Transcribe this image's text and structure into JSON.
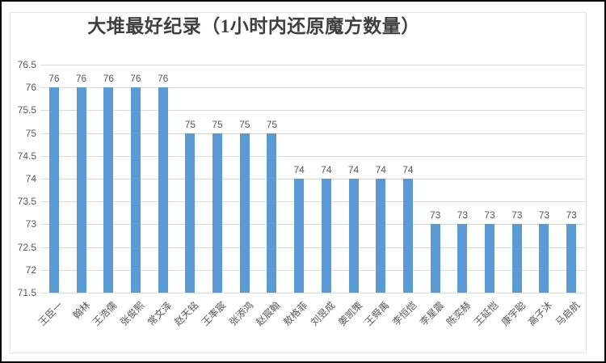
{
  "window": {
    "background": "#ffffff",
    "border_color": "#000000"
  },
  "chart_data": {
    "type": "bar",
    "title": "大堆最好纪录（1小时内还原魔方数量）",
    "categories": [
      "王臣一",
      "翰林",
      "王浩儒",
      "张俊熙",
      "常文泽",
      "赵天铭",
      "王率宸",
      "张添鸿",
      "赵宸翰",
      "敖格菲",
      "刘昱成",
      "姜凯策",
      "王舜禹",
      "李恒恺",
      "李星震",
      "陈奕赫",
      "王延恺",
      "康宇聪",
      "高子沐",
      "马启航"
    ],
    "values": [
      76,
      76,
      76,
      76,
      76,
      75,
      75,
      75,
      75,
      74,
      74,
      74,
      74,
      74,
      73,
      73,
      73,
      73,
      73,
      73
    ],
    "xlabel": "",
    "ylabel": "",
    "ylim": [
      71.5,
      76.5
    ],
    "ytick_step": 0.5,
    "yticks_top_to_bottom": [
      "76.5",
      "76",
      "75.5",
      "75",
      "74.5",
      "74",
      "73.5",
      "73",
      "72.5",
      "72",
      "71.5"
    ],
    "grid": true,
    "legend_position": "none",
    "data_labels_shown": true,
    "colors": {
      "bar_fill": "#5b9bd5",
      "gridline": "#dcdcdc",
      "axis_label": "#595959",
      "title": "#3f3f3f"
    }
  }
}
